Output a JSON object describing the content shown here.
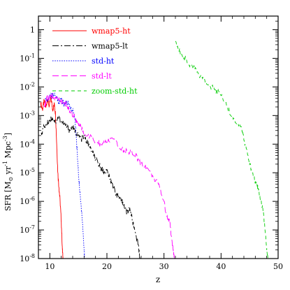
{
  "chart_data": {
    "type": "line",
    "title": "",
    "xlabel": "z",
    "ylabel": "SFR [M⊙ yr⁻¹ Mpc⁻³]",
    "ylabel_parts": {
      "pre": "SFR [M",
      "sub": "⊙",
      "mid1": " yr",
      "exp1": "-1",
      "mid2": " Mpc",
      "exp2": "-3",
      "post": "]"
    },
    "xscale": "linear",
    "yscale": "log",
    "xlim": [
      8,
      50
    ],
    "ylim": [
      1e-08,
      3
    ],
    "grid": false,
    "legend_position": "top-left",
    "xticks": [
      10,
      20,
      30,
      40,
      50
    ],
    "xtick_labels": [
      "10",
      "20",
      "30",
      "40",
      "50"
    ],
    "yticks": [
      {
        "value": 1,
        "base": "1",
        "exp": ""
      },
      {
        "value": 0.1,
        "base": "10",
        "exp": "-1"
      },
      {
        "value": 0.01,
        "base": "10",
        "exp": "-2"
      },
      {
        "value": 0.001,
        "base": "10",
        "exp": "-3"
      },
      {
        "value": 0.0001,
        "base": "10",
        "exp": "-4"
      },
      {
        "value": 1e-05,
        "base": "10",
        "exp": "-5"
      },
      {
        "value": 1e-06,
        "base": "10",
        "exp": "-6"
      },
      {
        "value": 1e-07,
        "base": "10",
        "exp": "-7"
      },
      {
        "value": 1e-08,
        "base": "10",
        "exp": "-8"
      }
    ],
    "series": [
      {
        "name": "wmap5-ht",
        "color": "#ff0000",
        "dash": "solid",
        "points": [
          [
            8.4,
            0.0028
          ],
          [
            8.7,
            0.0016
          ],
          [
            9.0,
            0.0032
          ],
          [
            9.3,
            0.0019
          ],
          [
            9.6,
            0.0038
          ],
          [
            9.9,
            0.0021
          ],
          [
            10.2,
            0.0042
          ],
          [
            10.5,
            0.0016
          ],
          [
            10.8,
            0.0025
          ],
          [
            11.0,
            0.0011
          ],
          [
            11.2,
            0.0001
          ],
          [
            11.4,
            1e-05
          ],
          [
            11.6,
            3e-06
          ],
          [
            11.8,
            1e-06
          ],
          [
            12.0,
            2e-07
          ],
          [
            12.2,
            2e-08
          ],
          [
            12.3,
            1e-08
          ]
        ]
      },
      {
        "name": "wmap5-lt",
        "color": "#000000",
        "dash": "dashdot",
        "points": [
          [
            8.5,
            0.00025
          ],
          [
            9.0,
            0.0004
          ],
          [
            9.5,
            0.0005
          ],
          [
            10.0,
            0.0007
          ],
          [
            10.5,
            0.0008
          ],
          [
            11.0,
            0.0006
          ],
          [
            11.5,
            0.0009
          ],
          [
            12.0,
            0.0006
          ],
          [
            12.5,
            0.0005
          ],
          [
            13.0,
            0.0004
          ],
          [
            13.5,
            0.0003
          ],
          [
            14.0,
            0.0004
          ],
          [
            14.5,
            0.00025
          ],
          [
            15.0,
            0.0002
          ],
          [
            15.5,
            0.00015
          ],
          [
            16.0,
            0.00018
          ],
          [
            16.5,
            0.00012
          ],
          [
            17.0,
            8e-05
          ],
          [
            17.5,
            5e-05
          ],
          [
            18.0,
            3e-05
          ],
          [
            18.5,
            2e-05
          ],
          [
            19.0,
            1.5e-05
          ],
          [
            19.5,
            1e-05
          ],
          [
            20.0,
            1.2e-05
          ],
          [
            20.5,
            6e-06
          ],
          [
            21.0,
            4e-06
          ],
          [
            21.5,
            2e-06
          ],
          [
            22.0,
            1.5e-06
          ],
          [
            22.5,
            1e-06
          ],
          [
            23.0,
            8e-07
          ],
          [
            23.5,
            4e-07
          ],
          [
            24.0,
            6e-07
          ],
          [
            24.5,
            2e-07
          ],
          [
            25.0,
            8e-08
          ],
          [
            25.5,
            3e-08
          ],
          [
            25.8,
            1e-08
          ]
        ]
      },
      {
        "name": "std-ht",
        "color": "#0000ff",
        "dash": "dotted",
        "points": [
          [
            9.2,
            0.004
          ],
          [
            9.6,
            0.003
          ],
          [
            10.0,
            0.005
          ],
          [
            10.4,
            0.0045
          ],
          [
            10.8,
            0.006
          ],
          [
            11.2,
            0.004
          ],
          [
            11.6,
            0.003
          ],
          [
            12.0,
            0.0035
          ],
          [
            12.5,
            0.0025
          ],
          [
            13.0,
            0.0028
          ],
          [
            13.5,
            0.002
          ],
          [
            14.0,
            0.0016
          ],
          [
            14.4,
            0.0008
          ],
          [
            14.6,
            0.0002
          ],
          [
            14.8,
            5e-05
          ],
          [
            15.0,
            1e-05
          ],
          [
            15.2,
            3e-06
          ],
          [
            15.4,
            1e-06
          ],
          [
            15.6,
            4e-07
          ],
          [
            15.8,
            1e-07
          ],
          [
            16.0,
            2e-08
          ],
          [
            16.1,
            1e-08
          ]
        ]
      },
      {
        "name": "std-lt",
        "color": "#ff00ff",
        "dash": "longdash",
        "points": [
          [
            9.0,
            0.002
          ],
          [
            9.5,
            0.004
          ],
          [
            10.0,
            0.0045
          ],
          [
            10.5,
            0.005
          ],
          [
            11.0,
            0.004
          ],
          [
            11.5,
            0.0035
          ],
          [
            12.0,
            0.003
          ],
          [
            12.5,
            0.0028
          ],
          [
            13.0,
            0.0022
          ],
          [
            13.5,
            0.0015
          ],
          [
            14.0,
            0.001
          ],
          [
            14.5,
            0.0008
          ],
          [
            15.0,
            0.0005
          ],
          [
            15.5,
            0.00035
          ],
          [
            16.0,
            0.00025
          ],
          [
            17.0,
            0.00018
          ],
          [
            18.0,
            0.00012
          ],
          [
            19.0,
            0.0001
          ],
          [
            20.0,
            0.00012
          ],
          [
            21.0,
            0.00016
          ],
          [
            22.0,
            8e-05
          ],
          [
            23.0,
            6e-05
          ],
          [
            24.0,
            5e-05
          ],
          [
            25.0,
            4e-05
          ],
          [
            26.0,
            2e-05
          ],
          [
            27.0,
            1.5e-05
          ],
          [
            28.0,
            8e-06
          ],
          [
            29.0,
            4e-06
          ],
          [
            30.0,
            1e-06
          ],
          [
            30.5,
            3e-07
          ],
          [
            31.0,
            2e-07
          ],
          [
            31.3,
            6e-08
          ],
          [
            31.6,
            2e-08
          ],
          [
            31.8,
            1e-08
          ]
        ]
      },
      {
        "name": "zoom-std-ht",
        "color": "#00cc00",
        "dash": "dashed",
        "points": [
          [
            32.0,
            0.4
          ],
          [
            33.0,
            0.15
          ],
          [
            34.0,
            0.08
          ],
          [
            35.0,
            0.05
          ],
          [
            36.0,
            0.03
          ],
          [
            37.0,
            0.02
          ],
          [
            38.0,
            0.012
          ],
          [
            39.0,
            0.008
          ],
          [
            40.0,
            0.005
          ],
          [
            41.0,
            0.002
          ],
          [
            42.0,
            0.001
          ],
          [
            43.0,
            0.0005
          ],
          [
            43.8,
            0.0003
          ],
          [
            44.2,
            0.0001
          ],
          [
            44.8,
            3e-05
          ],
          [
            45.5,
            1e-05
          ],
          [
            46.0,
            5e-06
          ],
          [
            46.5,
            3e-06
          ],
          [
            47.0,
            1e-06
          ],
          [
            47.4,
            5e-07
          ],
          [
            47.7,
            1e-07
          ],
          [
            48.0,
            2e-08
          ],
          [
            48.2,
            1e-08
          ]
        ]
      }
    ]
  }
}
